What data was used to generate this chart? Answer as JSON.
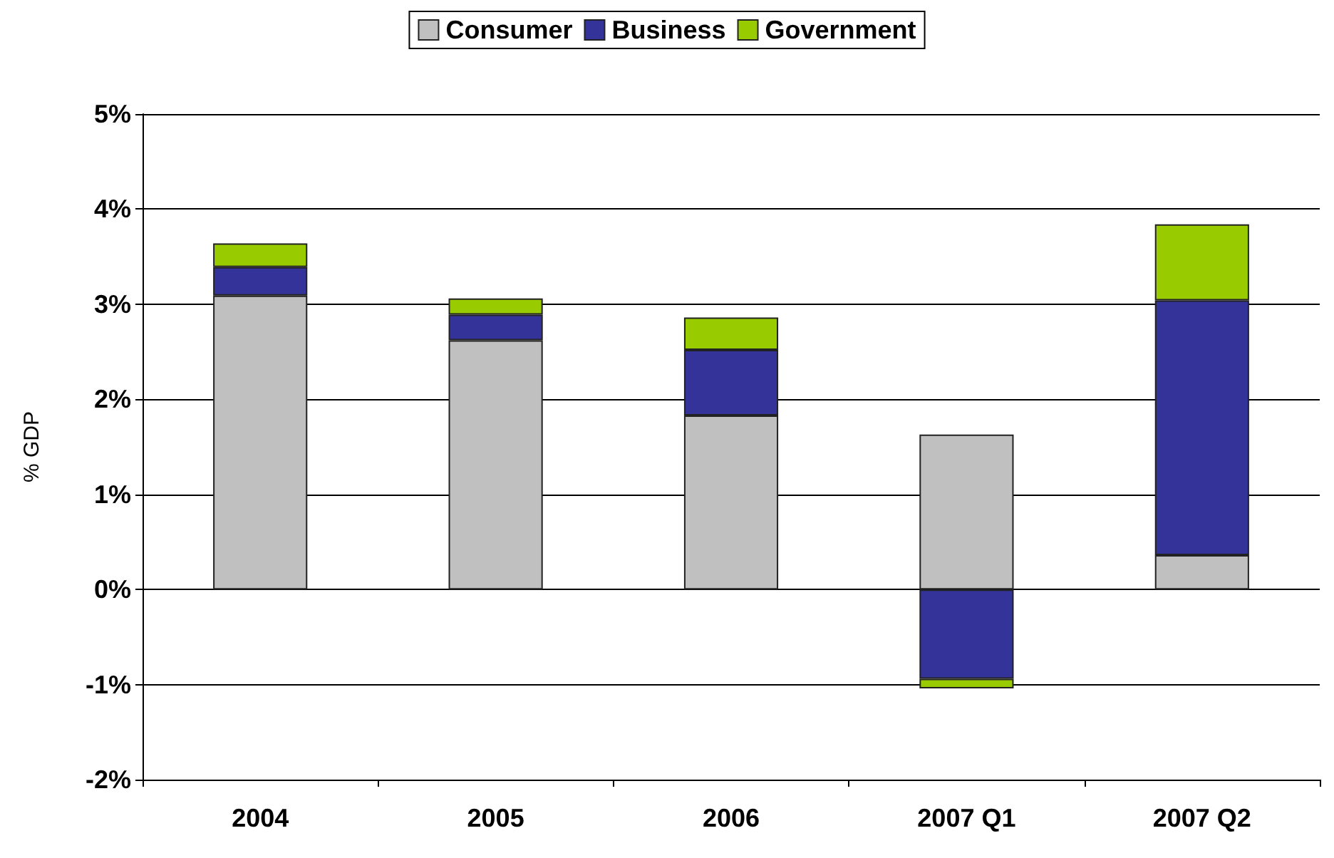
{
  "chart_data": {
    "type": "bar",
    "ylabel": "% GDP",
    "stacked": true,
    "grid": "y",
    "legend": "top",
    "categories": [
      "2004",
      "2005",
      "2006",
      "2007 Q1",
      "2007 Q2"
    ],
    "series": [
      {
        "name": "Consumer",
        "color": "#c0c0c0",
        "values": [
          3.09,
          2.62,
          1.83,
          1.63,
          0.36
        ]
      },
      {
        "name": "Business",
        "color": "#333399",
        "values": [
          0.3,
          0.27,
          0.69,
          -0.94,
          2.68
        ]
      },
      {
        "name": "Government",
        "color": "#99cc00",
        "values": [
          0.25,
          0.17,
          0.34,
          -0.1,
          0.8
        ]
      }
    ],
    "ylim": [
      -2,
      5
    ],
    "yticks": [
      {
        "value": -2,
        "label": "-2%"
      },
      {
        "value": -1,
        "label": "-1%"
      },
      {
        "value": 0,
        "label": "0%"
      },
      {
        "value": 1,
        "label": "1%"
      },
      {
        "value": 2,
        "label": "2%"
      },
      {
        "value": 3,
        "label": "3%"
      },
      {
        "value": 4,
        "label": "4%"
      },
      {
        "value": 5,
        "label": "5%"
      }
    ]
  }
}
